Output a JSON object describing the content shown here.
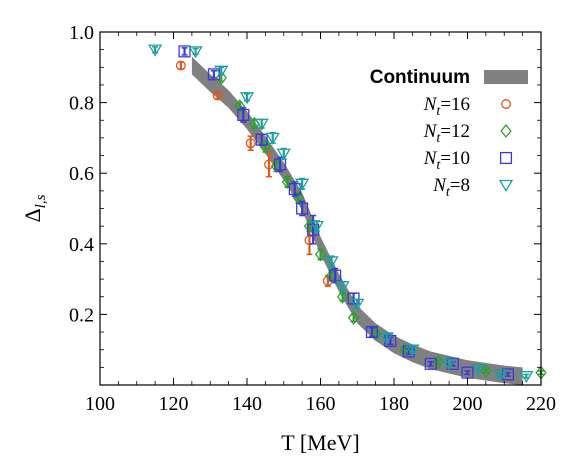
{
  "chart_data": {
    "type": "scatter",
    "xlabel": "T [MeV]",
    "ylabel": {
      "main": "Δ",
      "sub": "l,s"
    },
    "xlim": [
      100,
      220
    ],
    "ylim": [
      0,
      1.0
    ],
    "xticks": [
      100,
      120,
      140,
      160,
      180,
      200,
      220
    ],
    "yticks": [
      0.2,
      0.4,
      0.6,
      0.8,
      1.0
    ],
    "xtick_labels": [
      "100",
      "120",
      "140",
      "160",
      "180",
      "200",
      "220"
    ],
    "ytick_labels": [
      "0.2",
      "0.4",
      "0.6",
      "0.8",
      "1.0"
    ],
    "grid": false,
    "legend_position": "top-right",
    "band": {
      "name": "Continuum",
      "color": "#808080",
      "points": [
        {
          "x": 125,
          "y": 0.905
        },
        {
          "x": 130,
          "y": 0.855
        },
        {
          "x": 135,
          "y": 0.81
        },
        {
          "x": 140,
          "y": 0.75
        },
        {
          "x": 145,
          "y": 0.68
        },
        {
          "x": 150,
          "y": 0.605
        },
        {
          "x": 155,
          "y": 0.52
        },
        {
          "x": 160,
          "y": 0.395
        },
        {
          "x": 165,
          "y": 0.29
        },
        {
          "x": 170,
          "y": 0.2
        },
        {
          "x": 175,
          "y": 0.15
        },
        {
          "x": 180,
          "y": 0.115
        },
        {
          "x": 185,
          "y": 0.09
        },
        {
          "x": 190,
          "y": 0.07
        },
        {
          "x": 200,
          "y": 0.045
        },
        {
          "x": 210,
          "y": 0.03
        },
        {
          "x": 215,
          "y": 0.025
        }
      ],
      "halfwidth": 0.025
    },
    "series": [
      {
        "name": "N_t=16",
        "label_main": "N",
        "label_sub": "t",
        "label_rest": "=16",
        "marker": "circle",
        "color": "#e0561b",
        "points": [
          {
            "x": 122,
            "y": 0.905,
            "err": 0.01
          },
          {
            "x": 132,
            "y": 0.82,
            "err": 0.01
          },
          {
            "x": 141,
            "y": 0.685,
            "err": 0.02
          },
          {
            "x": 146,
            "y": 0.625,
            "err": 0.035
          },
          {
            "x": 157,
            "y": 0.41,
            "err": 0.04
          },
          {
            "x": 162,
            "y": 0.295,
            "err": 0.015
          }
        ]
      },
      {
        "name": "N_t=12",
        "label_main": "N",
        "label_sub": "t",
        "label_rest": "=12",
        "marker": "diamond",
        "color": "#2ca02c",
        "points": [
          {
            "x": 133,
            "y": 0.87,
            "err": 0.01
          },
          {
            "x": 138,
            "y": 0.79,
            "err": 0.01
          },
          {
            "x": 142,
            "y": 0.74,
            "err": 0.012
          },
          {
            "x": 145,
            "y": 0.675,
            "err": 0.015
          },
          {
            "x": 148,
            "y": 0.62,
            "err": 0.015
          },
          {
            "x": 151,
            "y": 0.575,
            "err": 0.015
          },
          {
            "x": 154,
            "y": 0.53,
            "err": 0.015
          },
          {
            "x": 157,
            "y": 0.45,
            "err": 0.015
          },
          {
            "x": 160,
            "y": 0.37,
            "err": 0.015
          },
          {
            "x": 163,
            "y": 0.31,
            "err": 0.012
          },
          {
            "x": 166,
            "y": 0.25,
            "err": 0.012
          },
          {
            "x": 169,
            "y": 0.19,
            "err": 0.01
          },
          {
            "x": 175,
            "y": 0.145,
            "err": 0.01
          },
          {
            "x": 183,
            "y": 0.1,
            "err": 0.008
          },
          {
            "x": 192,
            "y": 0.065,
            "err": 0.006
          },
          {
            "x": 205,
            "y": 0.04,
            "err": 0.005
          },
          {
            "x": 220,
            "y": 0.035,
            "err": 0.005
          }
        ]
      },
      {
        "name": "N_t=10",
        "label_main": "N",
        "label_sub": "t",
        "label_rest": "=10",
        "marker": "square",
        "color": "#3a3adb",
        "points": [
          {
            "x": 123,
            "y": 0.945,
            "err": 0.01
          },
          {
            "x": 131,
            "y": 0.88,
            "err": 0.01
          },
          {
            "x": 139,
            "y": 0.765,
            "err": 0.02
          },
          {
            "x": 144,
            "y": 0.695,
            "err": 0.015
          },
          {
            "x": 149,
            "y": 0.625,
            "err": 0.02
          },
          {
            "x": 153,
            "y": 0.555,
            "err": 0.02
          },
          {
            "x": 155,
            "y": 0.5,
            "err": 0.02
          },
          {
            "x": 158,
            "y": 0.44,
            "err": 0.04
          },
          {
            "x": 164,
            "y": 0.31,
            "err": 0.02
          },
          {
            "x": 169,
            "y": 0.245,
            "err": 0.015
          },
          {
            "x": 174,
            "y": 0.15,
            "err": 0.012
          },
          {
            "x": 179,
            "y": 0.125,
            "err": 0.01
          },
          {
            "x": 184,
            "y": 0.095,
            "err": 0.008
          },
          {
            "x": 190,
            "y": 0.06,
            "err": 0.006
          },
          {
            "x": 196,
            "y": 0.06,
            "err": 0.006
          },
          {
            "x": 200,
            "y": 0.035,
            "err": 0.005
          },
          {
            "x": 211,
            "y": 0.03,
            "err": 0.005
          }
        ]
      },
      {
        "name": "N_t=8",
        "label_main": "N",
        "label_sub": "t",
        "label_rest": "=8",
        "marker": "triangle-down",
        "color": "#1aa0a0",
        "points": [
          {
            "x": 115,
            "y": 0.95,
            "err": 0.008
          },
          {
            "x": 126,
            "y": 0.945,
            "err": 0.008
          },
          {
            "x": 133,
            "y": 0.89,
            "err": 0.01
          },
          {
            "x": 140,
            "y": 0.815,
            "err": 0.01
          },
          {
            "x": 144,
            "y": 0.74,
            "err": 0.012
          },
          {
            "x": 147,
            "y": 0.7,
            "err": 0.015
          },
          {
            "x": 150,
            "y": 0.655,
            "err": 0.015
          },
          {
            "x": 155,
            "y": 0.57,
            "err": 0.015
          },
          {
            "x": 159,
            "y": 0.45,
            "err": 0.015
          },
          {
            "x": 163,
            "y": 0.35,
            "err": 0.015
          },
          {
            "x": 166,
            "y": 0.28,
            "err": 0.012
          },
          {
            "x": 170,
            "y": 0.23,
            "err": 0.012
          },
          {
            "x": 178,
            "y": 0.135,
            "err": 0.01
          },
          {
            "x": 185,
            "y": 0.1,
            "err": 0.008
          },
          {
            "x": 195,
            "y": 0.06,
            "err": 0.006
          },
          {
            "x": 203,
            "y": 0.045,
            "err": 0.005
          },
          {
            "x": 209,
            "y": 0.03,
            "err": 0.005
          },
          {
            "x": 216,
            "y": 0.025,
            "err": 0.005
          }
        ]
      }
    ]
  }
}
